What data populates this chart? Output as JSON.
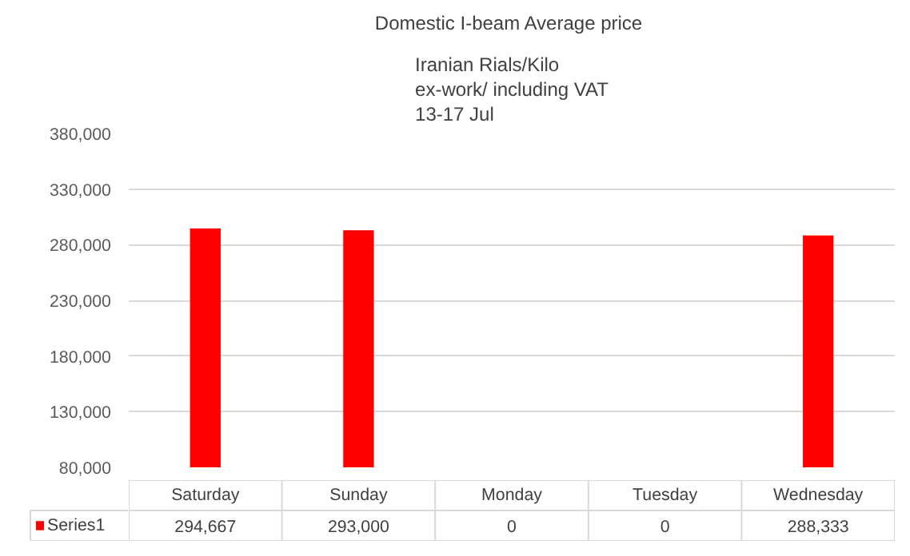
{
  "chart_data": {
    "type": "bar",
    "title": "Domestic I-beam Average  price",
    "subtitle": "Iranian Rials/Kilo\nex-work/ including VAT\n13-17 Jul",
    "categories": [
      "Saturday",
      "Sunday",
      "Monday",
      "Tuesday",
      "Wednesday"
    ],
    "series": [
      {
        "name": "Series1",
        "color": "#ff0000",
        "values": [
          294667,
          293000,
          null,
          null,
          288333
        ],
        "value_labels": [
          "294,667",
          "293,000",
          "0",
          "0",
          "288,333"
        ]
      }
    ],
    "ylim": [
      80000,
      380000
    ],
    "yticks": [
      {
        "value": 80000,
        "label": "80,000"
      },
      {
        "value": 130000,
        "label": "130,000"
      },
      {
        "value": 180000,
        "label": "180,000"
      },
      {
        "value": 230000,
        "label": "230,000"
      },
      {
        "value": 280000,
        "label": "280,000"
      },
      {
        "value": 330000,
        "label": "330,000"
      },
      {
        "value": 380000,
        "label": "380,000"
      }
    ],
    "grid": "y",
    "legend": "bottom"
  }
}
